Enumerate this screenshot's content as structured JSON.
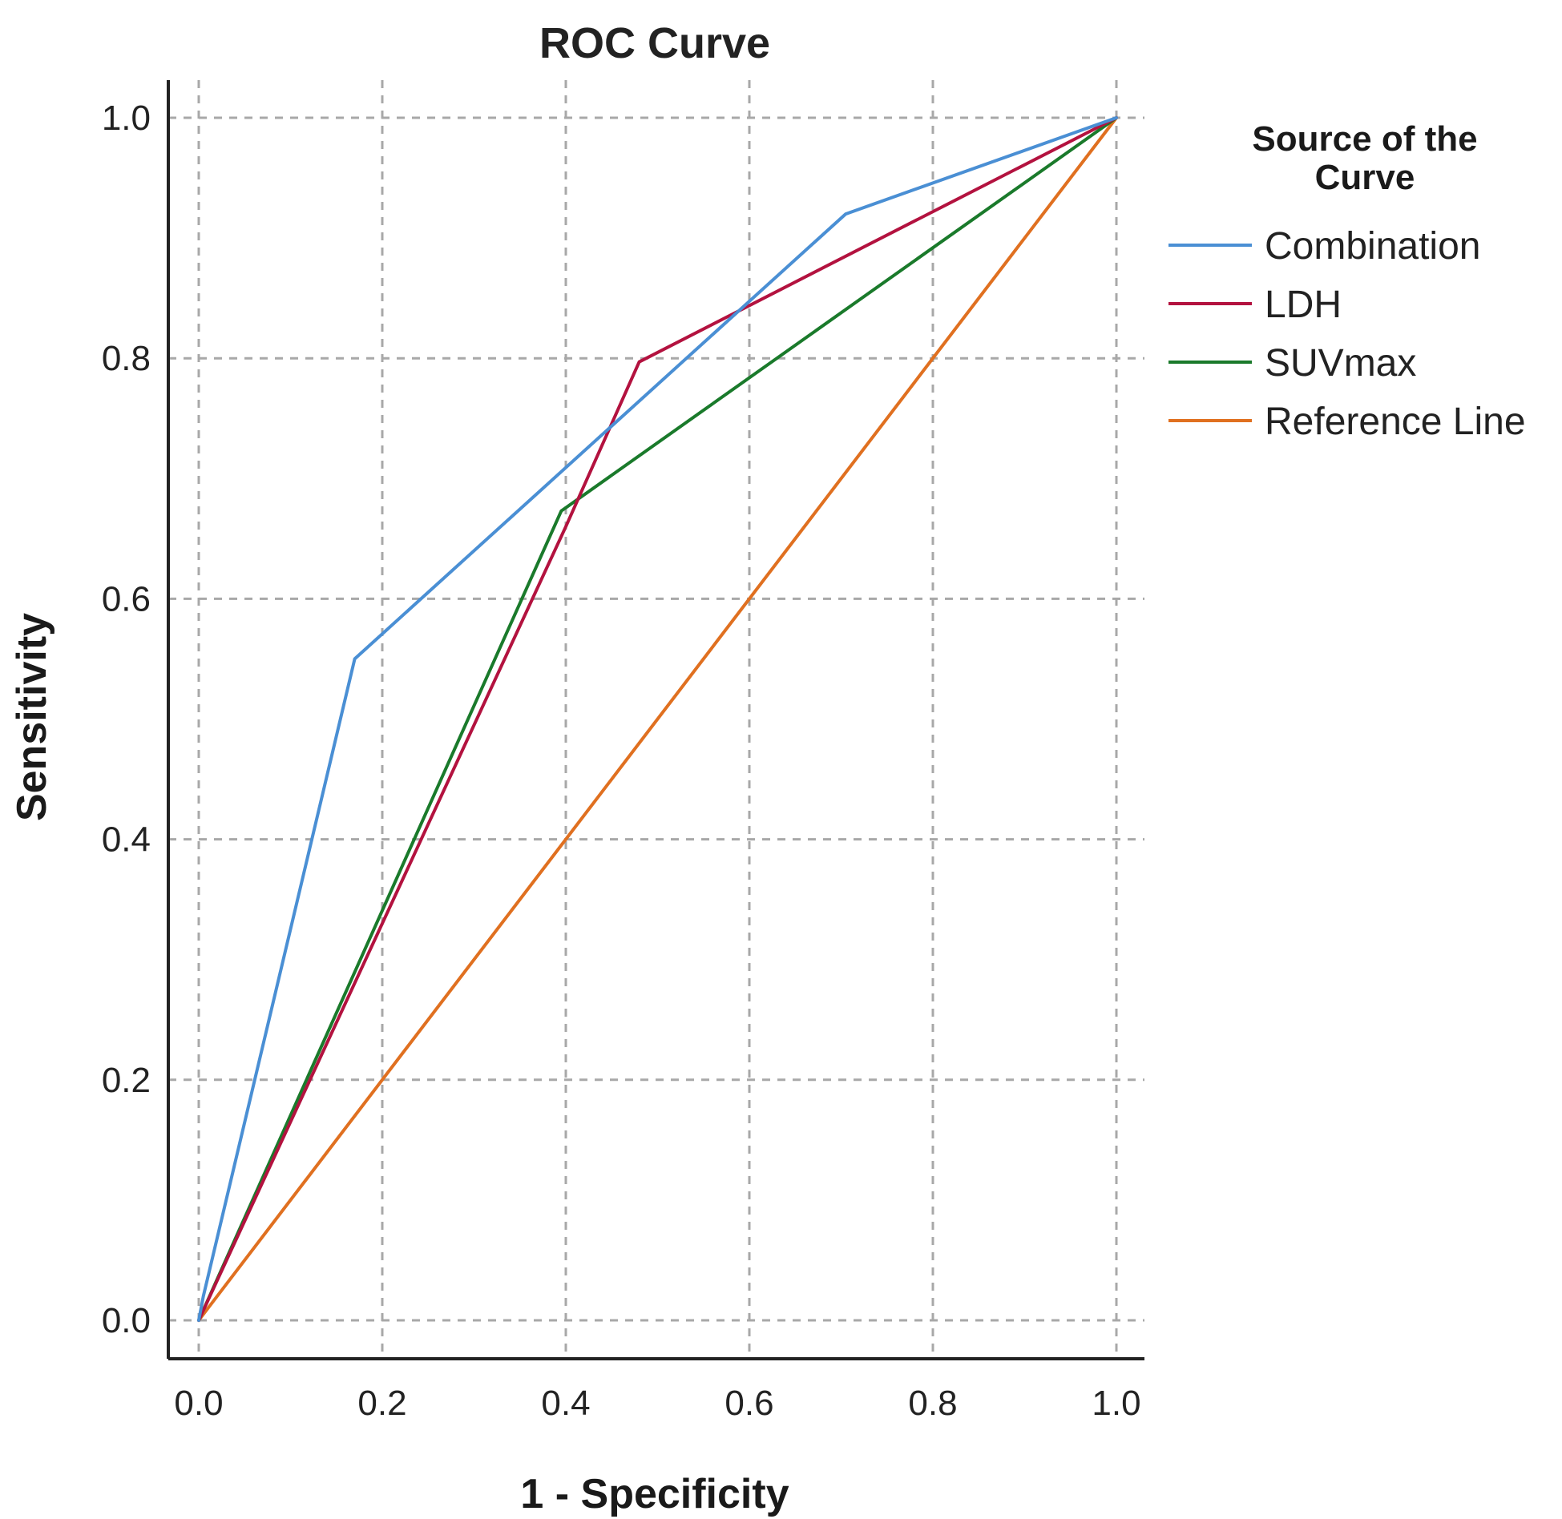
{
  "chart_data": {
    "type": "line",
    "title": "ROC Curve",
    "xlabel": "1 - Specificity",
    "ylabel": "Sensitivity",
    "xlim": [
      0.0,
      1.0
    ],
    "ylim": [
      0.0,
      1.0
    ],
    "xticks": [
      "0.0",
      "0.2",
      "0.4",
      "0.6",
      "0.8",
      "1.0"
    ],
    "yticks": [
      "0.0",
      "0.2",
      "0.4",
      "0.6",
      "0.8",
      "1.0"
    ],
    "grid": true,
    "legend": {
      "title": "Source of the Curve",
      "title_lines": [
        "Source of the",
        "Curve"
      ],
      "position": "right"
    },
    "series": [
      {
        "name": "Combination",
        "color": "#4a8fd4",
        "points": [
          [
            0.0,
            0.0
          ],
          [
            0.005,
            0.02
          ],
          [
            0.17,
            0.55
          ],
          [
            0.705,
            0.92
          ],
          [
            1.0,
            1.0
          ]
        ]
      },
      {
        "name": "LDH",
        "color": "#b3123f",
        "points": [
          [
            0.0,
            0.0
          ],
          [
            0.4,
            0.66
          ],
          [
            0.48,
            0.797
          ],
          [
            1.0,
            1.0
          ]
        ]
      },
      {
        "name": "SUVmax",
        "color": "#1a7a2b",
        "points": [
          [
            0.0,
            0.0
          ],
          [
            0.395,
            0.673
          ],
          [
            1.0,
            1.0
          ]
        ]
      },
      {
        "name": "Reference Line",
        "color": "#e07020",
        "points": [
          [
            0.0,
            0.0
          ],
          [
            1.0,
            1.0
          ]
        ]
      }
    ]
  }
}
